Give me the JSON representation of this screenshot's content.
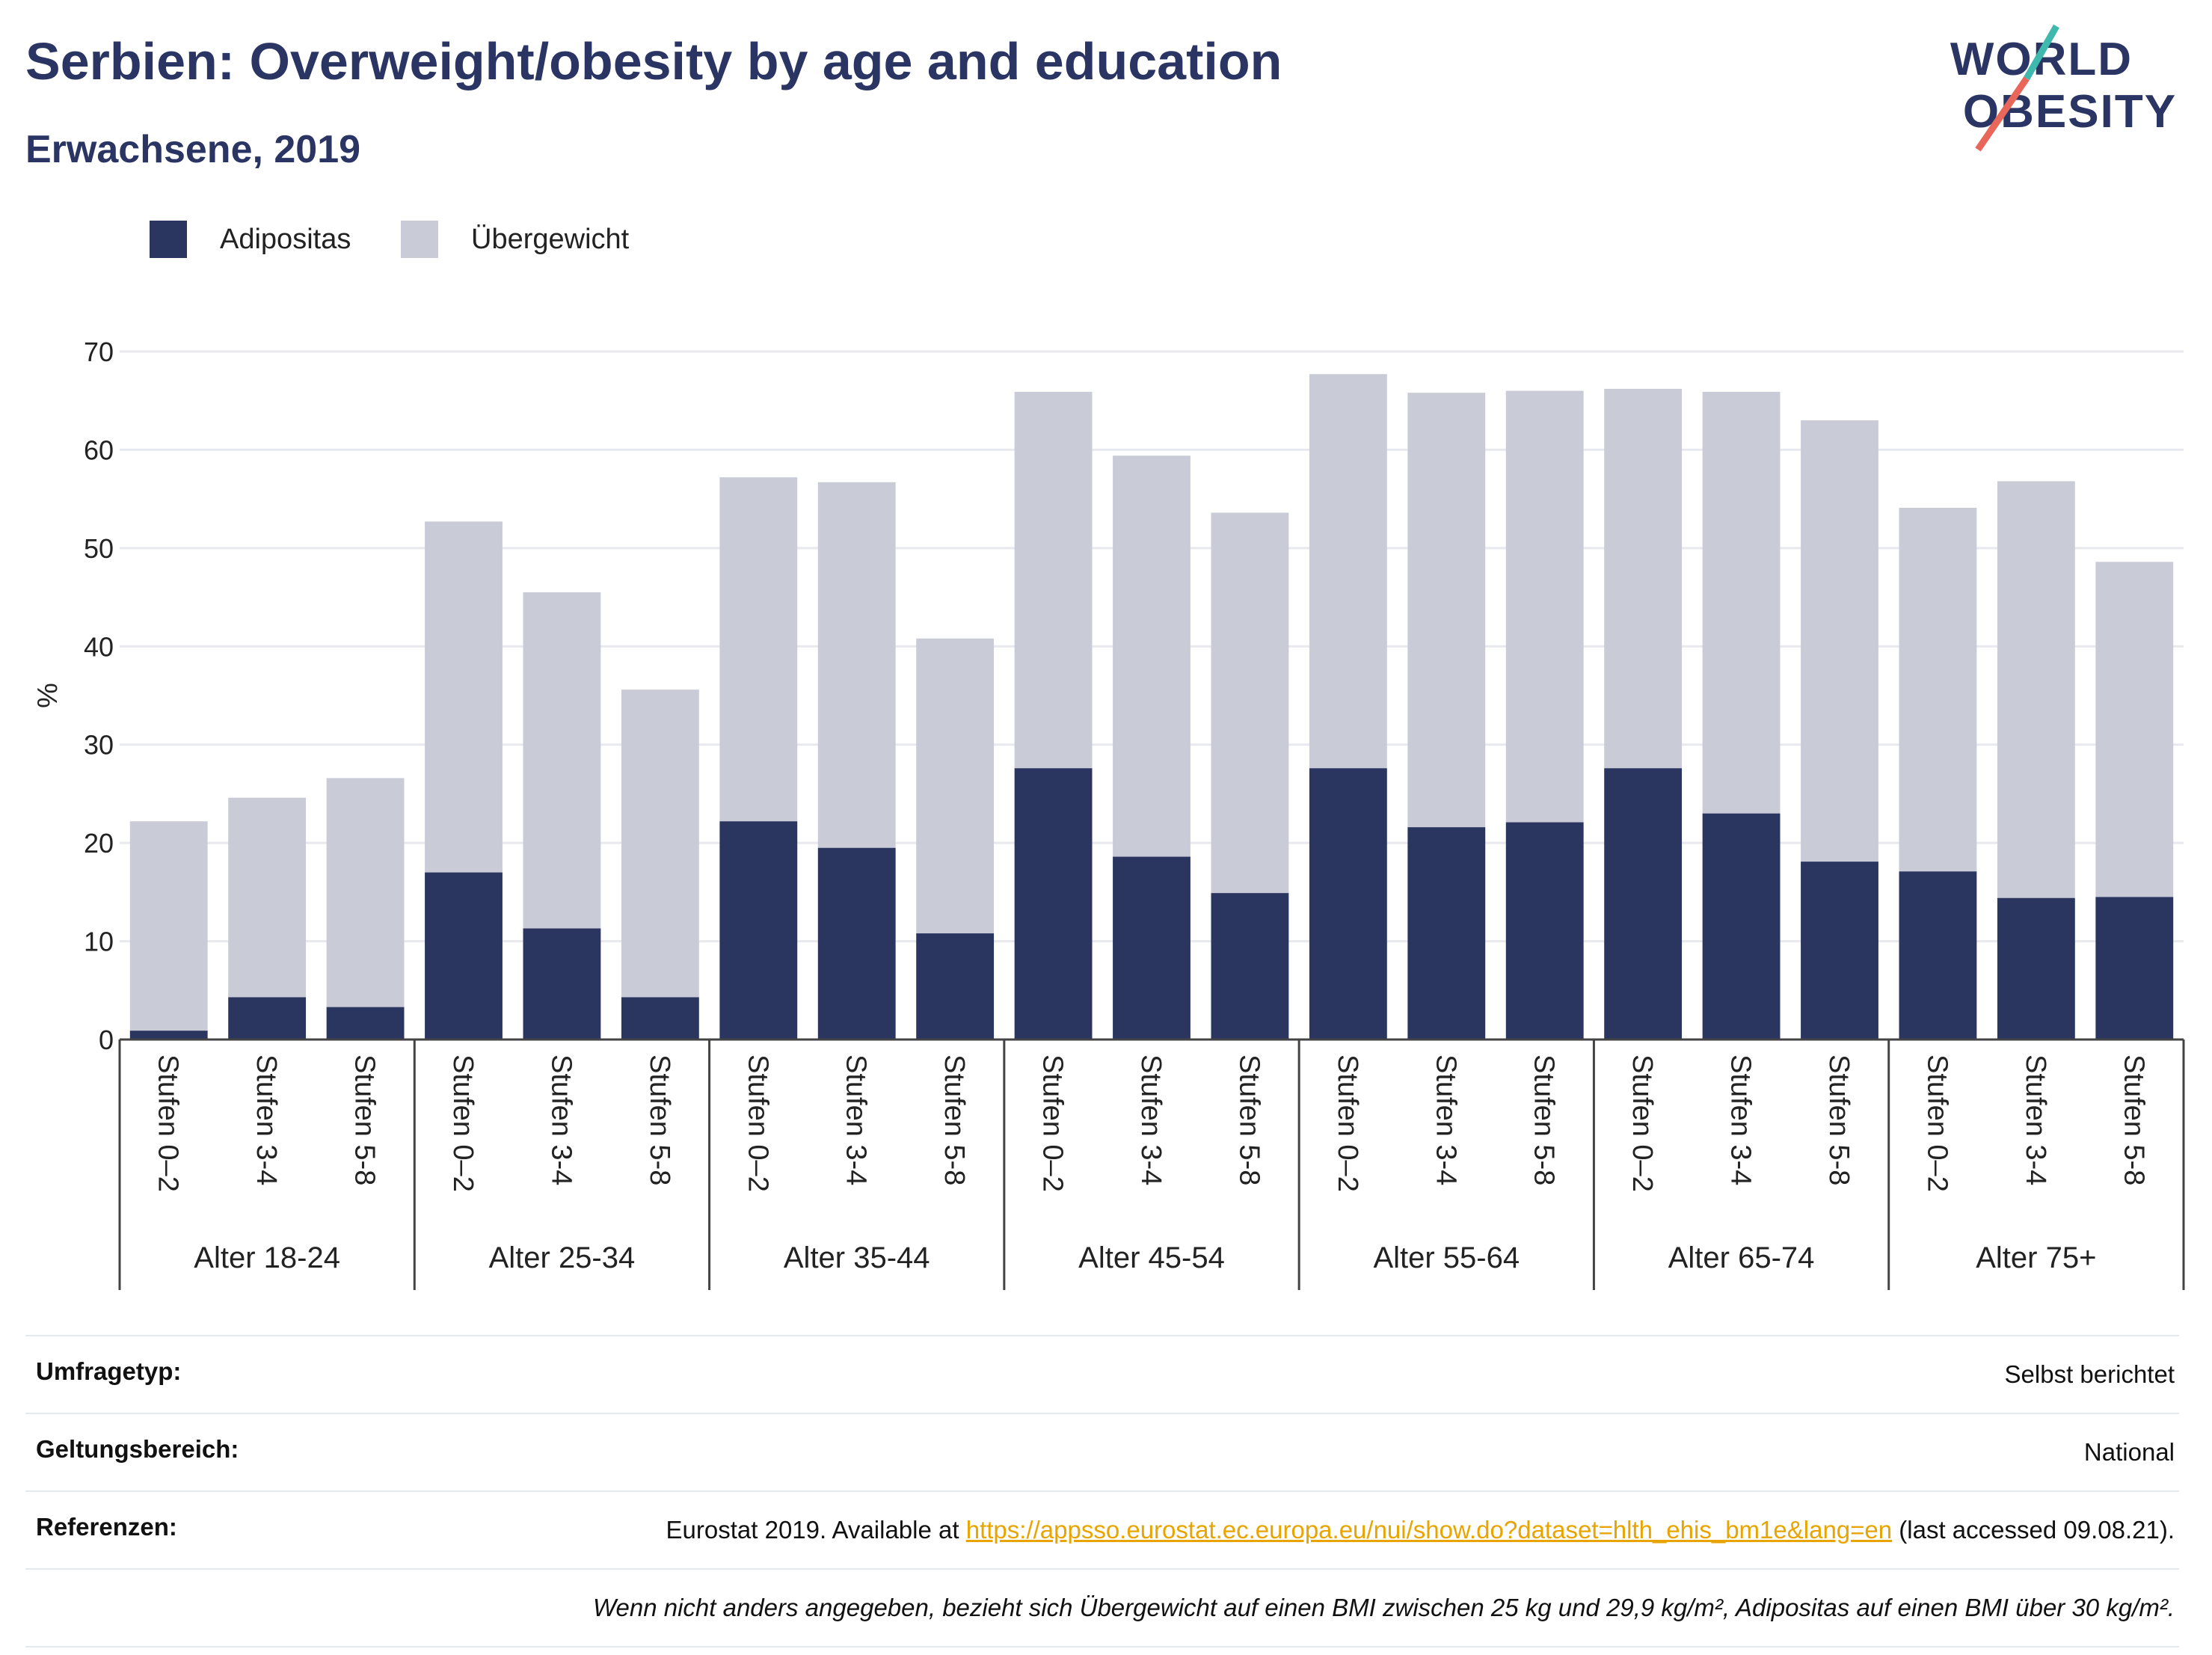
{
  "header": {
    "title": "Serbien: Overweight/obesity by age and education",
    "subtitle": "Erwachsene, 2019"
  },
  "logo": {
    "line1": "WORLD",
    "line2": "OBESITY"
  },
  "legend": [
    {
      "label": "Adipositas",
      "color": "#2a3560"
    },
    {
      "label": "Übergewicht",
      "color": "#c9cbd7"
    }
  ],
  "chart_data": {
    "type": "bar",
    "stacked": true,
    "ylabel": "%",
    "ylim": [
      0,
      70
    ],
    "yticks": [
      0,
      10,
      20,
      30,
      40,
      50,
      60,
      70
    ],
    "grid": true,
    "legend_position": "top-left",
    "groups": [
      "Alter 18-24",
      "Alter 25-34",
      "Alter 35-44",
      "Alter 45-54",
      "Alter 55-64",
      "Alter 65-74",
      "Alter 75+"
    ],
    "subcategories": [
      "Stufen 0–2",
      "Stufen 3-4",
      "Stufen 5-8"
    ],
    "series": [
      {
        "name": "Adipositas",
        "color": "#2a3560",
        "values": [
          0.9,
          4.3,
          3.3,
          17.0,
          11.3,
          4.3,
          22.2,
          19.5,
          10.8,
          27.6,
          18.6,
          14.9,
          27.6,
          21.6,
          22.1,
          27.6,
          23.0,
          18.1,
          17.1,
          14.4,
          14.5
        ]
      },
      {
        "name": "Übergewicht",
        "color": "#c9cbd7",
        "values": [
          21.3,
          20.3,
          23.3,
          35.7,
          34.2,
          31.3,
          35.0,
          37.2,
          30.0,
          38.3,
          40.8,
          38.7,
          40.1,
          44.2,
          43.9,
          38.6,
          42.9,
          44.9,
          37.0,
          42.4,
          34.1
        ]
      }
    ]
  },
  "info": {
    "survey_type_label": "Umfragetyp:",
    "survey_type_value": "Selbst berichtet",
    "scope_label": "Geltungsbereich:",
    "scope_value": "National",
    "references_label": "Referenzen:",
    "references_prefix": "Eurostat 2019. Available at ",
    "references_link": "https://appsso.eurostat.ec.europa.eu/nui/show.do?dataset=hlth_ehis_bm1e&lang=en",
    "references_suffix": " (last accessed 09.08.21).",
    "footnote": "Wenn nicht anders angegeben, bezieht sich Übergewicht auf einen BMI zwischen 25 kg und 29,9 kg/m², Adipositas auf einen BMI über 30 kg/m²."
  }
}
